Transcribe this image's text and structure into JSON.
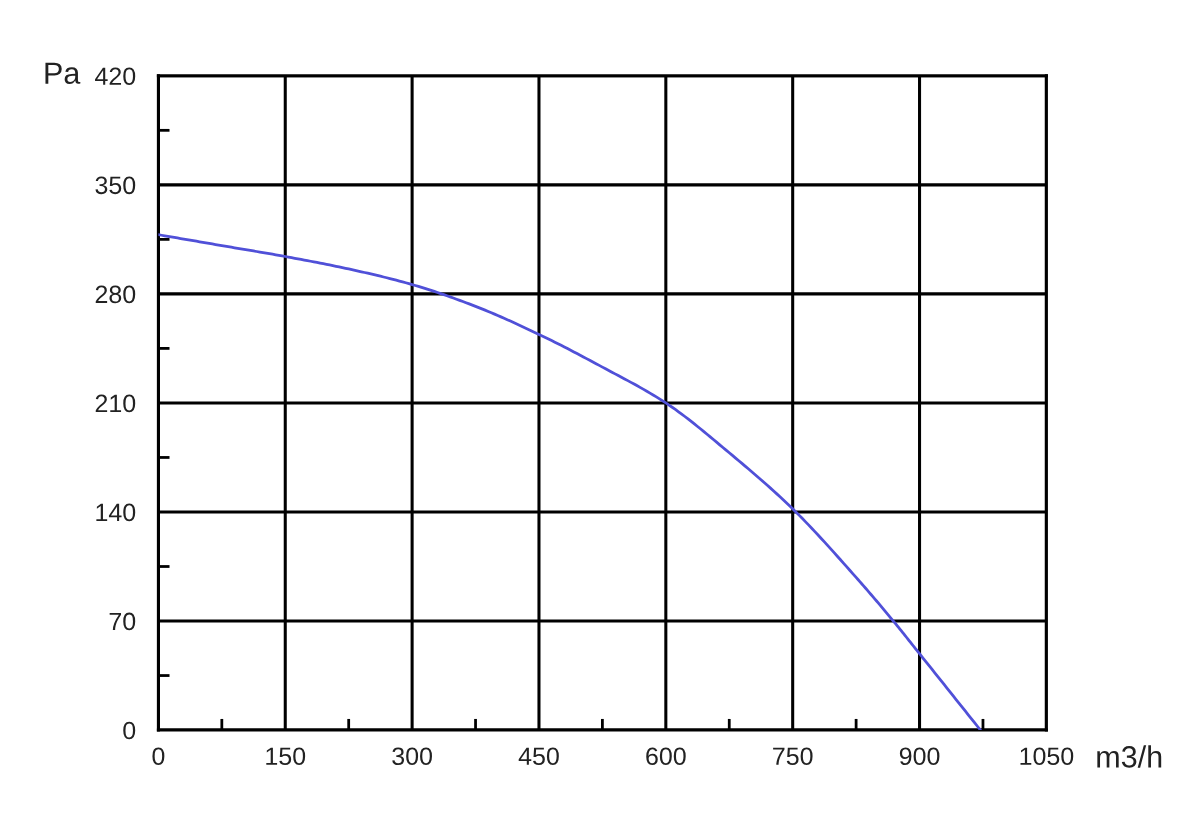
{
  "chart_data": {
    "type": "line",
    "xlabel": "m3/h",
    "ylabel": "Pa",
    "x": [
      0,
      75,
      150,
      225,
      300,
      375,
      450,
      525,
      600,
      675,
      750,
      825,
      869,
      900,
      972
    ],
    "series": [
      {
        "color": "#5050d8",
        "values": [
          318,
          311,
          304,
          296,
          286,
          272,
          254,
          233,
          210,
          178,
          142,
          98,
          70,
          49,
          0
        ]
      }
    ],
    "xlim": [
      0,
      1050
    ],
    "ylim": [
      0,
      420
    ],
    "xticks": [
      0,
      {
        "value": 75,
        "label": null
      },
      150,
      {
        "value": 225,
        "label": null
      },
      300,
      {
        "value": 375,
        "label": null
      },
      450,
      {
        "value": 525,
        "label": null
      },
      600,
      {
        "value": 675,
        "label": null
      },
      750,
      {
        "value": 825,
        "label": null
      },
      900,
      {
        "value": 975,
        "label": null
      },
      1050
    ],
    "yticks": [
      0,
      {
        "value": 35,
        "label": null
      },
      70,
      {
        "value": 105,
        "label": null
      },
      140,
      {
        "value": 175,
        "label": null
      },
      210,
      {
        "value": 245,
        "label": null
      },
      280,
      {
        "value": 315,
        "label": null
      },
      350,
      {
        "value": 385,
        "label": null
      },
      420
    ],
    "grid": true
  }
}
